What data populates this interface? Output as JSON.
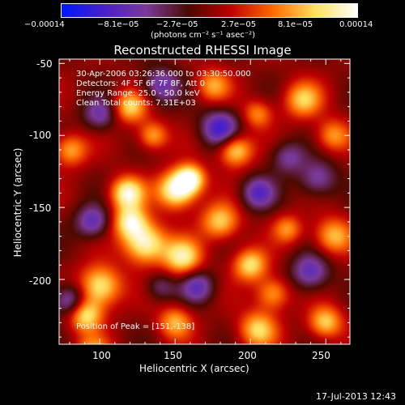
{
  "colorbar": {
    "ticks": [
      "−0.00014",
      "−8.1e−05",
      "−2.7e−05",
      "2.7e−05",
      "8.1e−05",
      "0.00014"
    ],
    "tick_values": [
      -0.00014,
      -8.1e-05,
      -2.7e-05,
      2.7e-05,
      8.1e-05,
      0.00014
    ],
    "units": "(photons cm⁻² s⁻¹ asec⁻²)",
    "colors": [
      "#0018ff",
      "#4a20c8",
      "#7a3a9a",
      "#4a0a00",
      "#c00000",
      "#ff6a00",
      "#ffe060",
      "#ffffff"
    ]
  },
  "chart_data": {
    "type": "heatmap",
    "title": "Reconstructed RHESSI Image",
    "xlabel": "Heliocentric X (arcsec)",
    "ylabel": "Heliocentric Y (arcsec)",
    "xlim": [
      73,
      266
    ],
    "ylim": [
      -245,
      -47
    ],
    "xticks": [
      100,
      150,
      200,
      250
    ],
    "yticks": [
      -50,
      -100,
      -150,
      -200
    ],
    "annotations": [
      "30-Apr-2006 03:26:36.000 to 03:30:50.000",
      "Detectors: 4F 5F 6F 7F 8F, Att 0",
      "Energy Range: 25.0 - 50.0 keV",
      "Clean     Total counts: 7.31E+03"
    ],
    "peak_label": "Position of Peak = [151,-138]",
    "blobs": [
      {
        "x": 151,
        "y": -138,
        "s": 9,
        "v": 1.0
      },
      {
        "x": 160,
        "y": -130,
        "s": 7,
        "v": 0.9
      },
      {
        "x": 118,
        "y": -140,
        "s": 8,
        "v": 0.9
      },
      {
        "x": 130,
        "y": -175,
        "s": 10,
        "v": 0.95
      },
      {
        "x": 120,
        "y": -160,
        "s": 8,
        "v": 0.8
      },
      {
        "x": 155,
        "y": -185,
        "s": 9,
        "v": 0.8
      },
      {
        "x": 100,
        "y": -205,
        "s": 10,
        "v": 0.85
      },
      {
        "x": 90,
        "y": -225,
        "s": 8,
        "v": 0.8
      },
      {
        "x": 120,
        "y": -80,
        "s": 8,
        "v": 0.7
      },
      {
        "x": 135,
        "y": -100,
        "s": 7,
        "v": 0.6
      },
      {
        "x": 190,
        "y": -110,
        "s": 8,
        "v": 0.8
      },
      {
        "x": 180,
        "y": -160,
        "s": 9,
        "v": 0.7
      },
      {
        "x": 200,
        "y": -190,
        "s": 8,
        "v": 0.75
      },
      {
        "x": 215,
        "y": -210,
        "s": 8,
        "v": 0.6
      },
      {
        "x": 205,
        "y": -235,
        "s": 9,
        "v": 0.7
      },
      {
        "x": 225,
        "y": -165,
        "s": 7,
        "v": 0.5
      },
      {
        "x": 255,
        "y": -170,
        "s": 9,
        "v": 0.65
      },
      {
        "x": 250,
        "y": -230,
        "s": 8,
        "v": 0.7
      },
      {
        "x": 235,
        "y": -75,
        "s": 9,
        "v": 0.65
      },
      {
        "x": 255,
        "y": -100,
        "s": 8,
        "v": 0.55
      },
      {
        "x": 175,
        "y": -65,
        "s": 8,
        "v": 0.55
      },
      {
        "x": 205,
        "y": -85,
        "s": 7,
        "v": 0.5
      },
      {
        "x": 150,
        "y": -230,
        "s": 8,
        "v": 0.6
      },
      {
        "x": 80,
        "y": -110,
        "s": 8,
        "v": 0.6
      },
      {
        "x": 95,
        "y": -250,
        "s": 8,
        "v": 0.5
      },
      {
        "x": 205,
        "y": -140,
        "s": 8,
        "v": -0.6
      },
      {
        "x": 180,
        "y": -95,
        "s": 9,
        "v": -0.75
      },
      {
        "x": 165,
        "y": -205,
        "s": 8,
        "v": -0.55
      },
      {
        "x": 95,
        "y": -160,
        "s": 8,
        "v": -0.6
      },
      {
        "x": 240,
        "y": -195,
        "s": 9,
        "v": -0.6
      },
      {
        "x": 245,
        "y": -130,
        "s": 9,
        "v": -0.5
      },
      {
        "x": 140,
        "y": -65,
        "s": 9,
        "v": -0.55
      },
      {
        "x": 80,
        "y": -215,
        "s": 8,
        "v": -0.65
      },
      {
        "x": 100,
        "y": -85,
        "s": 8,
        "v": -0.5
      },
      {
        "x": 225,
        "y": -115,
        "s": 8,
        "v": -0.45
      },
      {
        "x": 140,
        "y": -205,
        "s": 7,
        "v": -0.35
      }
    ]
  },
  "footer": {
    "timestamp": "17-Jul-2013 12:43"
  }
}
